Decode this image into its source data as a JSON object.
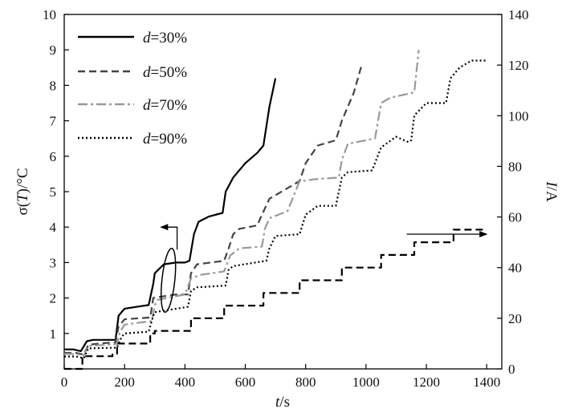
{
  "chart_data": {
    "type": "line",
    "xlabel": {
      "var": "t",
      "unit": "/s"
    },
    "ylabel_left": {
      "prefix": "σ(",
      "var": "T",
      "suffix": ")/°C"
    },
    "ylabel_right": {
      "var": "I",
      "unit": "/A"
    },
    "xlim": [
      0,
      1450
    ],
    "ylim_left": [
      0,
      10
    ],
    "ylim_right": [
      0,
      140
    ],
    "x_ticks": [
      0,
      200,
      400,
      600,
      800,
      1000,
      1200,
      1400
    ],
    "y_left_ticks": [
      1,
      2,
      3,
      4,
      5,
      6,
      7,
      8,
      9,
      10
    ],
    "y_right_ticks": [
      0,
      20,
      40,
      60,
      80,
      100,
      120,
      140
    ],
    "grid": false,
    "legend_position": "top-left",
    "series": [
      {
        "name": "d=30%",
        "legend_var": "d",
        "legend_value": "=30%",
        "axis": "left",
        "color": "#000000",
        "style": "solid",
        "x": [
          0,
          30,
          55,
          75,
          95,
          110,
          170,
          180,
          200,
          240,
          280,
          295,
          300,
          330,
          370,
          390,
          400,
          415,
          430,
          445,
          480,
          525,
          535,
          560,
          600,
          640,
          650,
          660,
          680,
          700
        ],
        "y": [
          0.55,
          0.55,
          0.5,
          0.78,
          0.82,
          0.82,
          0.82,
          1.5,
          1.7,
          1.75,
          1.8,
          2.4,
          2.7,
          2.95,
          3.0,
          3.0,
          3.0,
          3.05,
          3.8,
          4.15,
          4.3,
          4.4,
          5.0,
          5.4,
          5.8,
          6.1,
          6.2,
          6.3,
          7.4,
          8.2
        ]
      },
      {
        "name": "d=50%",
        "legend_var": "d",
        "legend_value": "=50%",
        "axis": "left",
        "color": "#444444",
        "style": "dashed",
        "x": [
          0,
          40,
          65,
          80,
          120,
          170,
          180,
          200,
          285,
          295,
          330,
          370,
          410,
          420,
          440,
          530,
          545,
          560,
          580,
          640,
          650,
          680,
          760,
          780,
          800,
          840,
          900,
          920,
          960,
          985
        ],
        "y": [
          0.45,
          0.45,
          0.4,
          0.68,
          0.72,
          0.75,
          1.2,
          1.4,
          1.45,
          2.0,
          2.05,
          2.1,
          2.1,
          2.7,
          2.95,
          3.05,
          3.4,
          3.8,
          3.95,
          4.05,
          4.25,
          4.8,
          5.2,
          5.3,
          5.8,
          6.3,
          6.45,
          7.0,
          7.8,
          8.55
        ]
      },
      {
        "name": "d=70%",
        "legend_var": "d",
        "legend_value": "=70%",
        "axis": "left",
        "color": "#999999",
        "style": "dashdot",
        "x": [
          0,
          40,
          65,
          80,
          175,
          185,
          200,
          290,
          300,
          310,
          400,
          420,
          450,
          530,
          550,
          580,
          655,
          665,
          680,
          740,
          780,
          790,
          830,
          910,
          920,
          940,
          1030,
          1050,
          1080,
          1160,
          1175
        ],
        "y": [
          0.42,
          0.42,
          0.38,
          0.65,
          0.7,
          1.05,
          1.25,
          1.35,
          1.8,
          1.95,
          2.1,
          2.55,
          2.65,
          2.75,
          3.2,
          3.4,
          3.45,
          3.95,
          4.25,
          4.45,
          5.3,
          5.3,
          5.35,
          5.4,
          5.9,
          6.35,
          6.5,
          7.5,
          7.65,
          7.8,
          9.0
        ]
      },
      {
        "name": "d=90%",
        "legend_var": "d",
        "legend_value": "=90%",
        "axis": "left",
        "color": "#000000",
        "style": "dotted",
        "x": [
          0,
          40,
          65,
          80,
          175,
          190,
          200,
          280,
          295,
          300,
          410,
          420,
          440,
          535,
          545,
          560,
          670,
          680,
          700,
          780,
          800,
          840,
          900,
          920,
          940,
          1020,
          1050,
          1100,
          1140,
          1150,
          1160,
          1200,
          1265,
          1280,
          1310,
          1350,
          1400
        ],
        "y": [
          0.35,
          0.35,
          0.3,
          0.58,
          0.6,
          0.9,
          1.0,
          1.05,
          1.5,
          1.6,
          1.75,
          2.2,
          2.3,
          2.35,
          2.8,
          2.9,
          3.05,
          3.4,
          3.75,
          3.8,
          4.35,
          4.6,
          4.6,
          5.4,
          5.55,
          5.6,
          6.25,
          6.55,
          6.4,
          6.45,
          7.15,
          7.5,
          7.5,
          8.2,
          8.5,
          8.7,
          8.7
        ]
      },
      {
        "name": "I",
        "axis": "right",
        "color": "#000000",
        "style": "dashed",
        "x": [
          0,
          60,
          60,
          160,
          160,
          175,
          175,
          285,
          285,
          300,
          300,
          420,
          420,
          530,
          530,
          660,
          660,
          780,
          780,
          920,
          920,
          1050,
          1050,
          1160,
          1160,
          1290,
          1290,
          1400
        ],
        "y": [
          0,
          0,
          5,
          5,
          6,
          6,
          10,
          10,
          14,
          14,
          15,
          15,
          20,
          20,
          25,
          25,
          30,
          30,
          35,
          35,
          40,
          40,
          45,
          45,
          50,
          50,
          55,
          55
        ]
      }
    ],
    "annotations": [
      {
        "type": "arrow",
        "direction": "left",
        "points_to": "left-axis",
        "data_x_from": 440,
        "data_x_to": 320,
        "data_y": 4.0
      },
      {
        "type": "arrow",
        "direction": "right",
        "points_to": "right-axis",
        "data_x_from": 1135,
        "data_x_to": 1400,
        "data_y": 3.8
      },
      {
        "type": "ellipse",
        "data_cx": 345,
        "data_cy": 2.5
      }
    ]
  }
}
